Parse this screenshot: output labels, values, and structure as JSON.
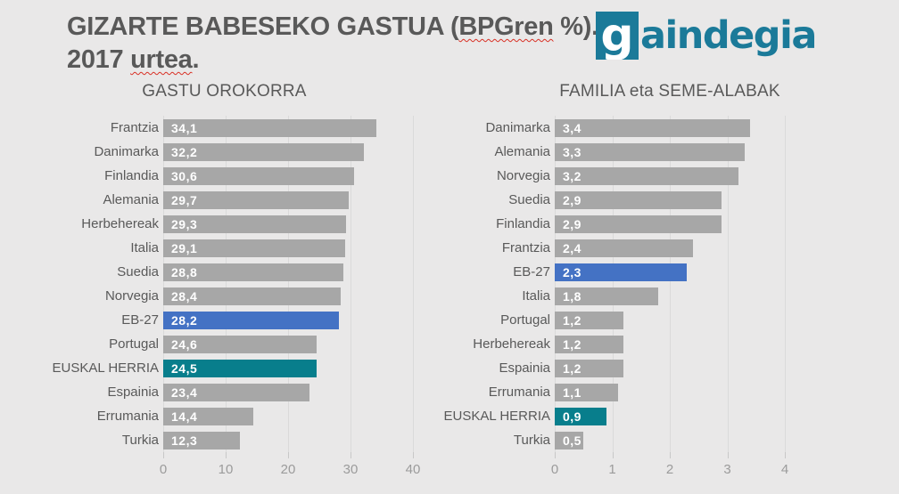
{
  "colors": {
    "background": "#E9E8E8",
    "title_text": "#595959",
    "label_text": "#595959",
    "axis_text": "#9B9B9B",
    "gridline": "#DADADA",
    "value_text": "#FFFFFF",
    "bar_default": "#A7A7A7",
    "bar_eb27": "#4472C4",
    "bar_euskal": "#087E8C",
    "logo_teal": "#1B7A99",
    "spellcheck_red": "#D93025"
  },
  "header": {
    "title_lines": [
      {
        "segments": [
          {
            "text": "GIZARTE BABESEKO GASTUA (",
            "spellcheck": false
          },
          {
            "text": "BPGren",
            "spellcheck": true
          },
          {
            "text": " %).",
            "spellcheck": false
          }
        ]
      },
      {
        "segments": [
          {
            "text": "2017 ",
            "spellcheck": false
          },
          {
            "text": "urtea",
            "spellcheck": true
          },
          {
            "text": ".",
            "spellcheck": false
          }
        ]
      }
    ],
    "logo": {
      "boxed_letter": "g",
      "rest": "aindegia"
    }
  },
  "chart_data": [
    {
      "type": "bar",
      "orientation": "horizontal",
      "title": "GASTU OROKORRA",
      "xlim": [
        0,
        40
      ],
      "xticks": [
        0,
        10,
        20,
        30,
        40
      ],
      "grid": "vertical",
      "bars": [
        {
          "label": "Frantzia",
          "value": 34.1,
          "value_label": "34,1",
          "style": "default"
        },
        {
          "label": "Danimarka",
          "value": 32.2,
          "value_label": "32,2",
          "style": "default"
        },
        {
          "label": "Finlandia",
          "value": 30.6,
          "value_label": "30,6",
          "style": "default"
        },
        {
          "label": "Alemania",
          "value": 29.7,
          "value_label": "29,7",
          "style": "default"
        },
        {
          "label": "Herbehereak",
          "value": 29.3,
          "value_label": "29,3",
          "style": "default"
        },
        {
          "label": "Italia",
          "value": 29.1,
          "value_label": "29,1",
          "style": "default"
        },
        {
          "label": "Suedia",
          "value": 28.8,
          "value_label": "28,8",
          "style": "default"
        },
        {
          "label": "Norvegia",
          "value": 28.4,
          "value_label": "28,4",
          "style": "default"
        },
        {
          "label": "EB-27",
          "value": 28.2,
          "value_label": "28,2",
          "style": "eb27"
        },
        {
          "label": "Portugal",
          "value": 24.6,
          "value_label": "24,6",
          "style": "default"
        },
        {
          "label": "EUSKAL HERRIA",
          "value": 24.5,
          "value_label": "24,5",
          "style": "euskal"
        },
        {
          "label": "Espainia",
          "value": 23.4,
          "value_label": "23,4",
          "style": "default"
        },
        {
          "label": "Errumania",
          "value": 14.4,
          "value_label": "14,4",
          "style": "default"
        },
        {
          "label": "Turkia",
          "value": 12.3,
          "value_label": "12,3",
          "style": "default"
        }
      ]
    },
    {
      "type": "bar",
      "orientation": "horizontal",
      "title": "FAMILIA eta SEME-ALABAK",
      "xlim": [
        0,
        4
      ],
      "xticks": [
        0,
        1,
        2,
        3,
        4
      ],
      "grid": "vertical",
      "bars": [
        {
          "label": "Danimarka",
          "value": 3.4,
          "value_label": "3,4",
          "style": "default"
        },
        {
          "label": "Alemania",
          "value": 3.3,
          "value_label": "3,3",
          "style": "default"
        },
        {
          "label": "Norvegia",
          "value": 3.2,
          "value_label": "3,2",
          "style": "default"
        },
        {
          "label": "Suedia",
          "value": 2.9,
          "value_label": "2,9",
          "style": "default"
        },
        {
          "label": "Finlandia",
          "value": 2.9,
          "value_label": "2,9",
          "style": "default"
        },
        {
          "label": "Frantzia",
          "value": 2.4,
          "value_label": "2,4",
          "style": "default"
        },
        {
          "label": "EB-27",
          "value": 2.3,
          "value_label": "2,3",
          "style": "eb27"
        },
        {
          "label": "Italia",
          "value": 1.8,
          "value_label": "1,8",
          "style": "default"
        },
        {
          "label": "Portugal",
          "value": 1.2,
          "value_label": "1,2",
          "style": "default"
        },
        {
          "label": "Herbehereak",
          "value": 1.2,
          "value_label": "1,2",
          "style": "default"
        },
        {
          "label": "Espainia",
          "value": 1.2,
          "value_label": "1,2",
          "style": "default"
        },
        {
          "label": "Errumania",
          "value": 1.1,
          "value_label": "1,1",
          "style": "default"
        },
        {
          "label": "EUSKAL HERRIA",
          "value": 0.9,
          "value_label": "0,9",
          "style": "euskal"
        },
        {
          "label": "Turkia",
          "value": 0.5,
          "value_label": "0,5",
          "style": "default"
        }
      ]
    }
  ]
}
